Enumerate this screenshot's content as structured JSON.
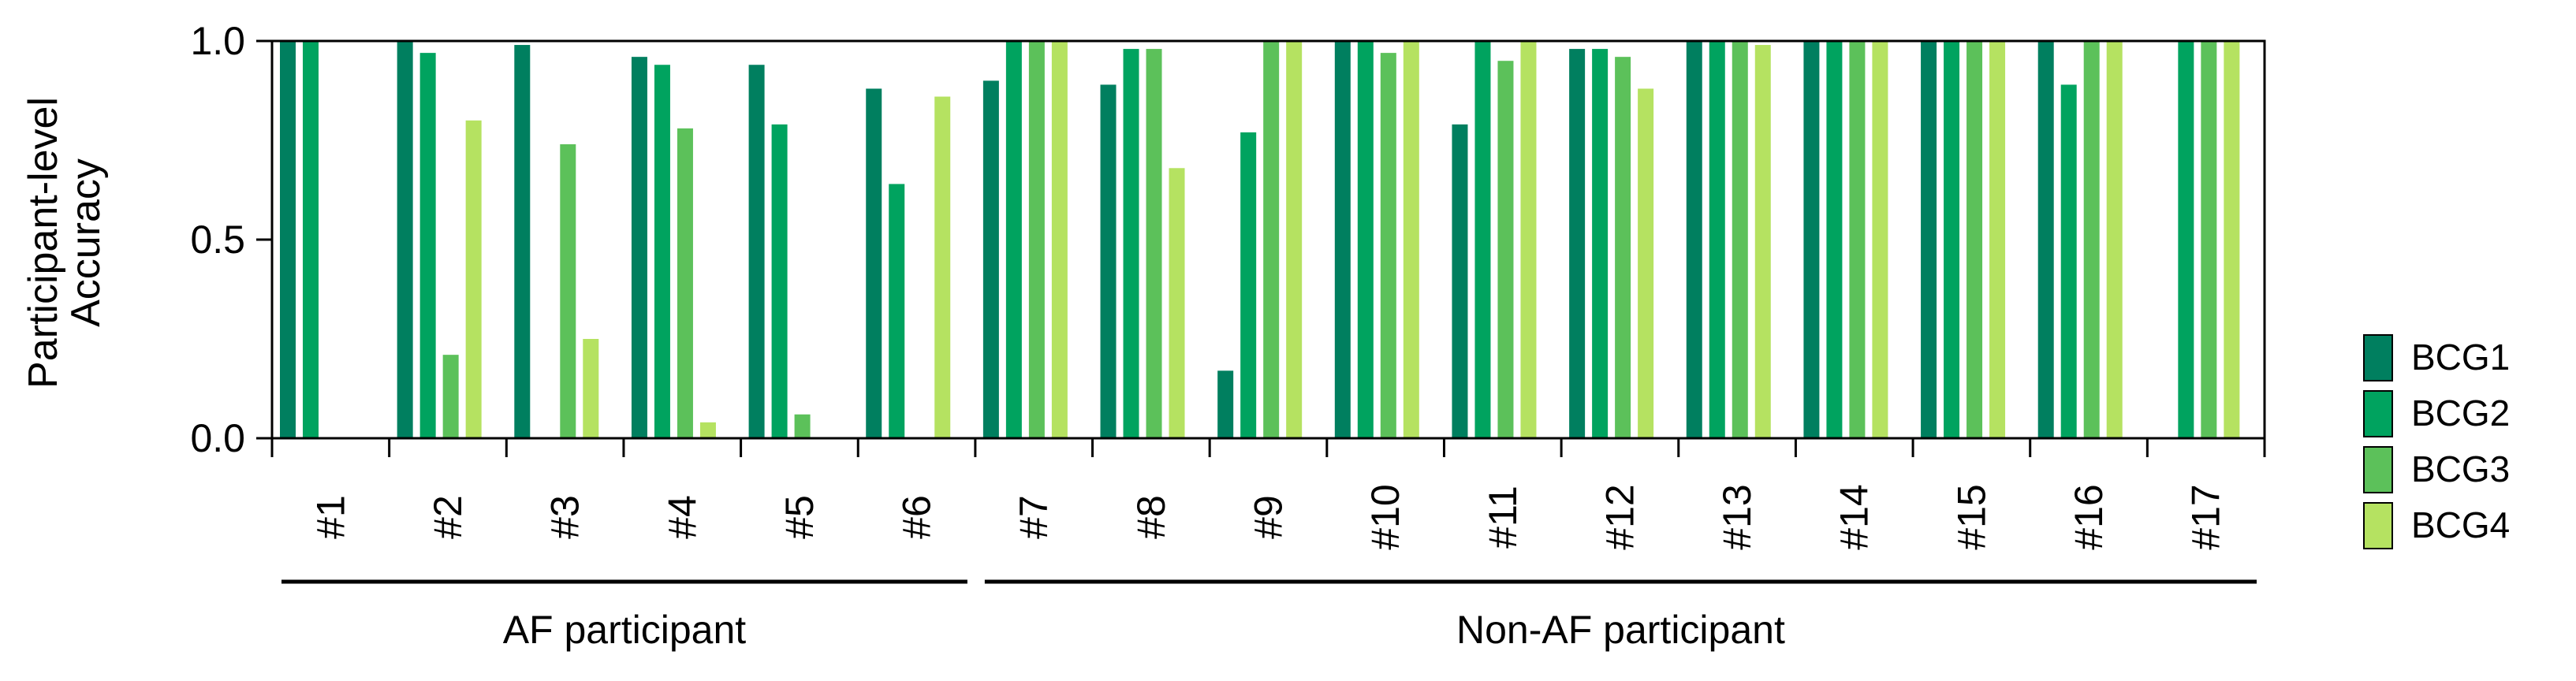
{
  "chart_data": {
    "type": "bar",
    "ylabel_lines": [
      "Participant-level",
      "Accuracy"
    ],
    "ylim": [
      0,
      1
    ],
    "yticks": [
      0.0,
      0.5,
      1.0
    ],
    "ytick_labels": [
      "0.0",
      "0.5",
      "1.0"
    ],
    "grid": false,
    "legend_position": "right",
    "categories": [
      "#1",
      "#2",
      "#3",
      "#4",
      "#5",
      "#6",
      "#7",
      "#8",
      "#9",
      "#10",
      "#11",
      "#12",
      "#13",
      "#14",
      "#15",
      "#16",
      "#17"
    ],
    "groups": [
      {
        "label": "AF participant",
        "categories": [
          "#1",
          "#2",
          "#3",
          "#4",
          "#5",
          "#6"
        ]
      },
      {
        "label": "Non-AF participant",
        "categories": [
          "#7",
          "#8",
          "#9",
          "#10",
          "#11",
          "#12",
          "#13",
          "#14",
          "#15",
          "#16",
          "#17"
        ]
      }
    ],
    "series": [
      {
        "name": "BCG1",
        "color": "#007f5f",
        "values": [
          1.0,
          1.0,
          0.99,
          0.96,
          0.94,
          0.88,
          0.9,
          0.89,
          0.17,
          1.0,
          0.79,
          0.98,
          1.0,
          1.0,
          1.0,
          1.0,
          0.0
        ]
      },
      {
        "name": "BCG2",
        "color": "#00a35f",
        "values": [
          1.0,
          0.97,
          0.0,
          0.94,
          0.79,
          0.64,
          1.0,
          0.98,
          0.77,
          1.0,
          1.0,
          0.98,
          1.0,
          1.0,
          1.0,
          0.89,
          1.0
        ]
      },
      {
        "name": "BCG3",
        "color": "#5cc15a",
        "values": [
          0.0,
          0.21,
          0.74,
          0.78,
          0.06,
          0.0,
          1.0,
          0.98,
          1.0,
          0.97,
          0.95,
          0.96,
          1.0,
          1.0,
          1.0,
          1.0,
          1.0
        ]
      },
      {
        "name": "BCG4",
        "color": "#b5e261",
        "values": [
          0.0,
          0.8,
          0.25,
          0.04,
          0.0,
          0.86,
          1.0,
          0.68,
          1.0,
          1.0,
          1.0,
          0.88,
          0.99,
          1.0,
          1.0,
          1.0,
          1.0
        ]
      }
    ]
  }
}
